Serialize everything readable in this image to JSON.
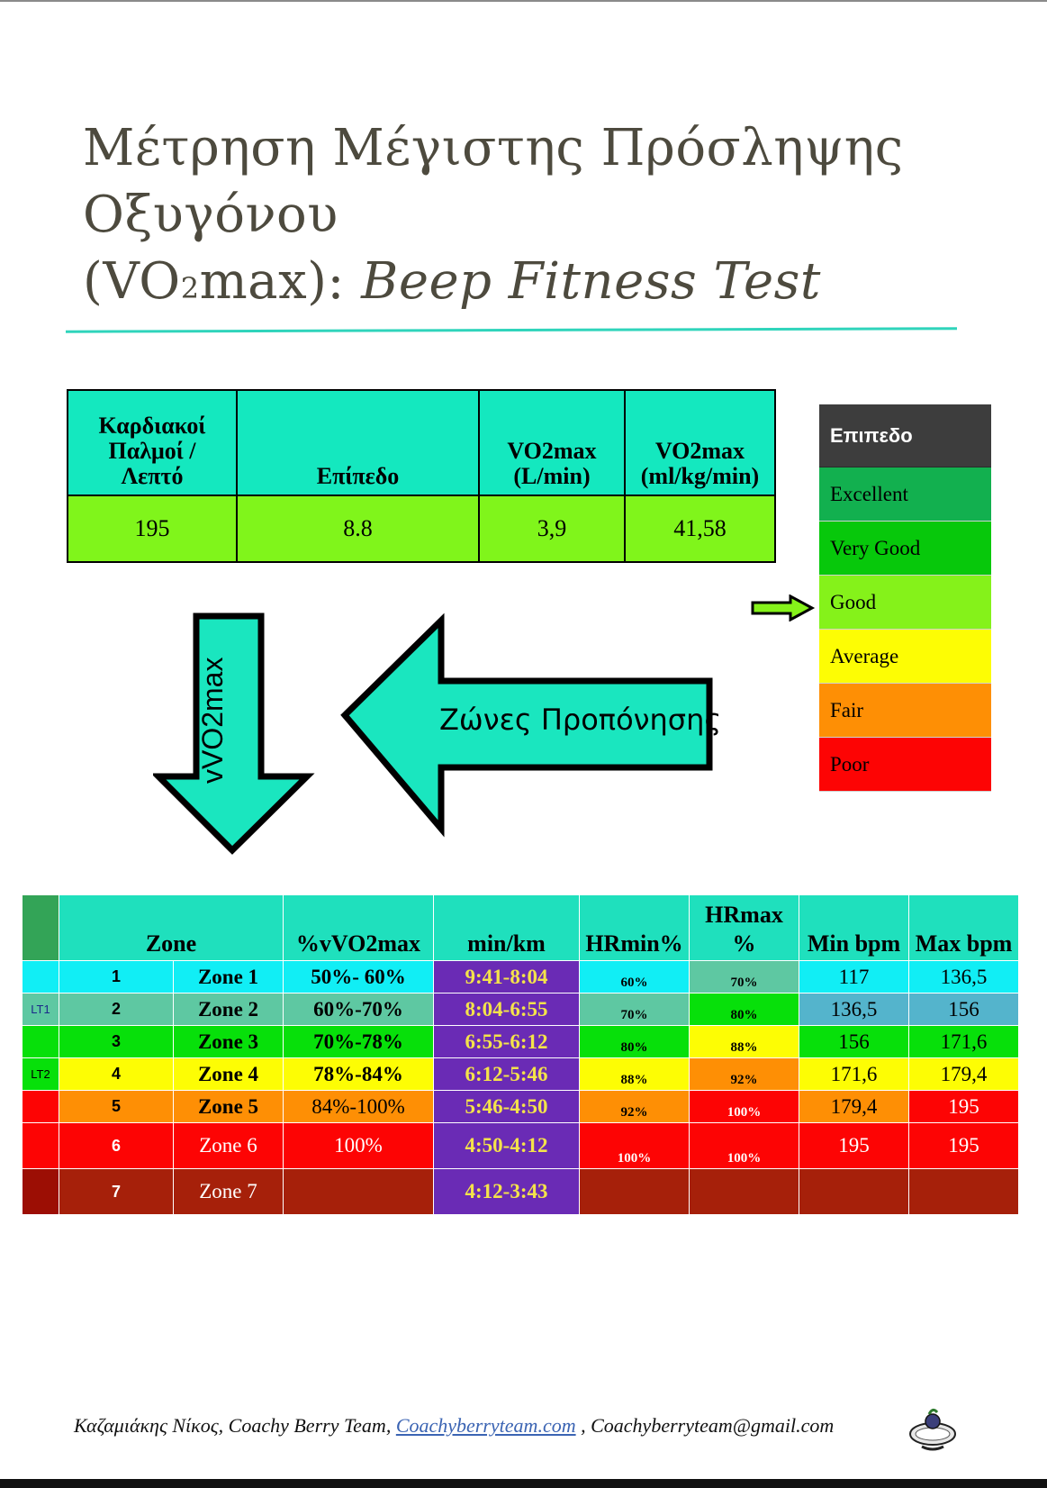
{
  "title": {
    "line1": "Μέτρηση Μέγιστης Πρόσληψης",
    "line2": "Οξυγόνου",
    "line3_prefix": "(VO",
    "line3_sub": "2",
    "line3_mid": "max): ",
    "line3_italic": "Beep Fitness Test"
  },
  "results": {
    "headers": [
      "Καρδιακοί\nΠαλμοί /\nΛεπτό",
      "Επίπεδο",
      "VO2max\n(L/min)",
      "VO2max\n(ml/kg/min)"
    ],
    "values": [
      "195",
      "8.8",
      "3,9",
      "41,58"
    ],
    "header_color": "#14e8bf",
    "value_color": "#80f51b"
  },
  "legend": {
    "header": "Επιπεδο",
    "levels": [
      {
        "label": "Excellent",
        "color": "#12b04f"
      },
      {
        "label": "Very Good",
        "color": "#07c80b"
      },
      {
        "label": "Good",
        "color": "#85f21a"
      },
      {
        "label": "Average",
        "color": "#fdfd04"
      },
      {
        "label": "Fair",
        "color": "#fe8f05"
      },
      {
        "label": "Poor",
        "color": "#fd0404"
      }
    ],
    "selected": "Good"
  },
  "arrows": {
    "down_label": "vVO2max",
    "left_label": "Ζώνες Προπόνησης",
    "fill_color": "#1ae6bf"
  },
  "zones": {
    "headers": [
      "Zone",
      "%vVO2max",
      "min/km",
      "HRmin%",
      "HRmax\n%",
      "Min bpm",
      "Max bpm"
    ],
    "rows": [
      {
        "side": "",
        "num": "1",
        "name": "Zone 1",
        "pct": "50%- 60%",
        "pace": "9:41-8:04",
        "hrmin": "60%",
        "hrmax": "70%",
        "minbpm": "117",
        "maxbpm": "136,5"
      },
      {
        "side": "LT1",
        "num": "2",
        "name": "Zone 2",
        "pct": "60%-70%",
        "pace": "8:04-6:55",
        "hrmin": "70%",
        "hrmax": "80%",
        "minbpm": "136,5",
        "maxbpm": "156"
      },
      {
        "side": "",
        "num": "3",
        "name": "Zone 3",
        "pct": "70%-78%",
        "pace": "6:55-6:12",
        "hrmin": "80%",
        "hrmax": "88%",
        "minbpm": "156",
        "maxbpm": "171,6"
      },
      {
        "side": "LT2",
        "num": "4",
        "name": "Zone 4",
        "pct": "78%-84%",
        "pace": "6:12-5:46",
        "hrmin": "88%",
        "hrmax": "92%",
        "minbpm": "171,6",
        "maxbpm": "179,4"
      },
      {
        "side": "",
        "num": "5",
        "name": "Zone 5",
        "pct": "84%-100%",
        "pace": "5:46-4:50",
        "hrmin": "92%",
        "hrmax": "100%",
        "minbpm": "179,4",
        "maxbpm": "195"
      },
      {
        "side": "",
        "num": "6",
        "name": "Zone 6",
        "pct": "100%",
        "pace": "4:50-4:12",
        "hrmin": "100%",
        "hrmax": "100%",
        "minbpm": "195",
        "maxbpm": "195"
      },
      {
        "side": "",
        "num": "7",
        "name": "Zone 7",
        "pct": "",
        "pace": "4:12-3:43",
        "hrmin": "",
        "hrmax": "",
        "minbpm": "",
        "maxbpm": ""
      }
    ]
  },
  "footer": {
    "author": "Καζαμιάκης Νίκος, Coachy Berry Team, ",
    "site": "Coachyberryteam.com",
    "sep": " , ",
    "email": "Coachyberryteam@gmail.com"
  }
}
